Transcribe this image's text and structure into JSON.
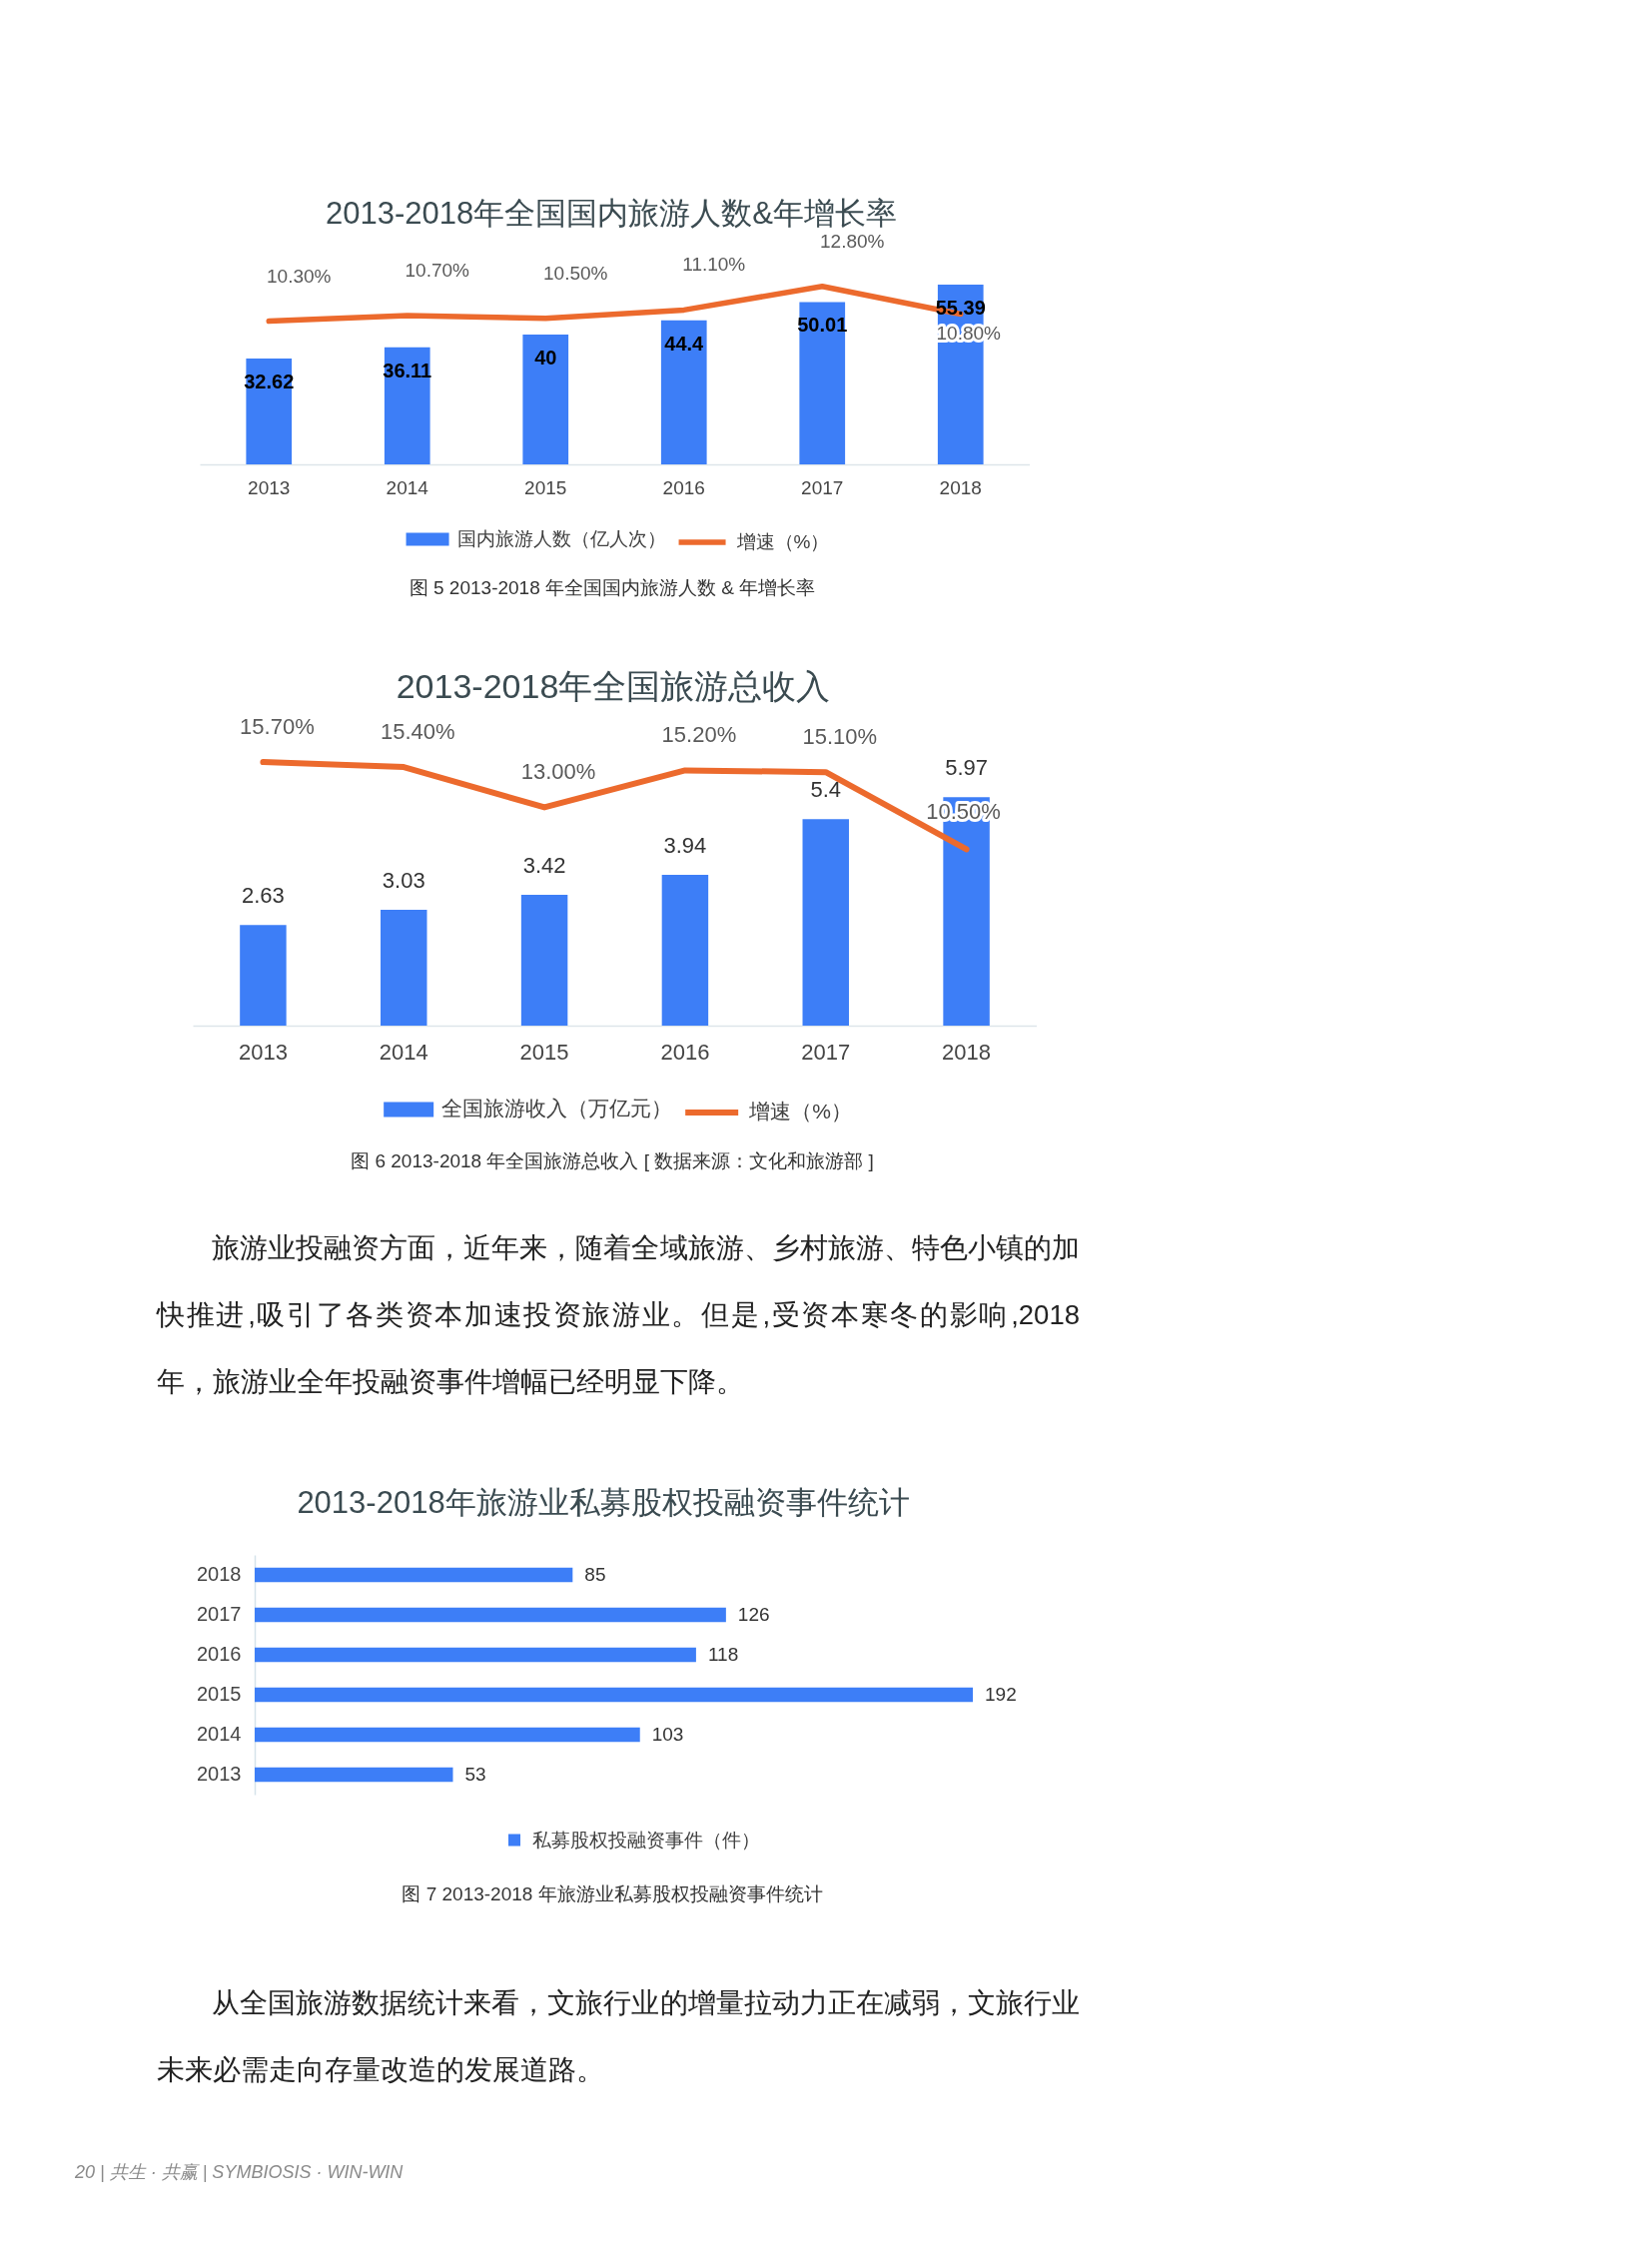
{
  "chart_data": [
    {
      "type": "bar",
      "title": "2013-2018年全国国内旅游人数&年增长率",
      "categories": [
        "2013",
        "2014",
        "2015",
        "2016",
        "2017",
        "2018"
      ],
      "series": [
        {
          "name": "国内旅游人数（亿人次）",
          "type": "bar",
          "color": "#3d7ef7",
          "values": [
            32.62,
            36.11,
            40,
            44.4,
            50.01,
            55.39
          ]
        },
        {
          "name": "增速（%）",
          "type": "line",
          "axis": "y2",
          "color": "#ec6a2d",
          "values": [
            10.3,
            10.7,
            10.5,
            11.1,
            12.8,
            10.8
          ],
          "value_labels": [
            "10.30%",
            "10.70%",
            "10.50%",
            "11.10%",
            "12.80%",
            "10.80%"
          ]
        }
      ],
      "data_labels": true,
      "legend": "bottom",
      "tick_labels": "x",
      "annotations": [
        "图 5  2013-2018 年全国国内旅游人数 & 年增长率"
      ]
    },
    {
      "type": "bar",
      "title": "2013-2018年全国旅游总收入",
      "categories": [
        "2013",
        "2014",
        "2015",
        "2016",
        "2017",
        "2018"
      ],
      "series": [
        {
          "name": "全国旅游收入（万亿元）",
          "type": "bar",
          "color": "#3d7ef7",
          "values": [
            2.63,
            3.03,
            3.42,
            3.94,
            5.4,
            5.97
          ]
        },
        {
          "name": "增速（%）",
          "type": "line",
          "axis": "y2",
          "color": "#ec6a2d",
          "values": [
            15.7,
            15.4,
            13.0,
            15.2,
            15.1,
            10.5
          ],
          "value_labels": [
            "15.70%",
            "15.40%",
            "13.00%",
            "15.20%",
            "15.10%",
            "10.50%"
          ]
        }
      ],
      "data_labels": true,
      "legend": "bottom",
      "tick_labels": "x",
      "annotations": [
        "图 6  2013-2018 年全国旅游总收入 [ 数据来源：文化和旅游部 ]",
        "旅游业投融资方面，近年来，随着全域旅游、乡村旅游、特色小镇的加快推进 ,吸引了各类资本加速投资旅游业。但是 ,受资本寒冬的影响 ,2018 年，旅游业全年投融资事件增幅已经明显下降。"
      ]
    },
    {
      "type": "bar",
      "orientation": "horizontal",
      "title": "2013-2018年旅游业私募股权投融资事件统计",
      "categories": [
        "2018",
        "2017",
        "2016",
        "2015",
        "2014",
        "2013"
      ],
      "series": [
        {
          "name": "私募股权投融资事件（件）",
          "color": "#3d7ef7",
          "values": [
            85,
            126,
            118,
            192,
            103,
            53
          ]
        }
      ],
      "data_labels": true,
      "legend": "bottom",
      "tick_labels": "y",
      "annotations": [
        "图 7  2013-2018 年旅游业私募股权投融资事件统计",
        "从全国旅游数据统计来看，文旅行业的增量拉动力正在减弱，文旅行业未来必需走向存量改造的发展道路。",
        "20 | 共生 · 共赢 | SYMBIOSIS · WIN-WIN"
      ]
    }
  ]
}
